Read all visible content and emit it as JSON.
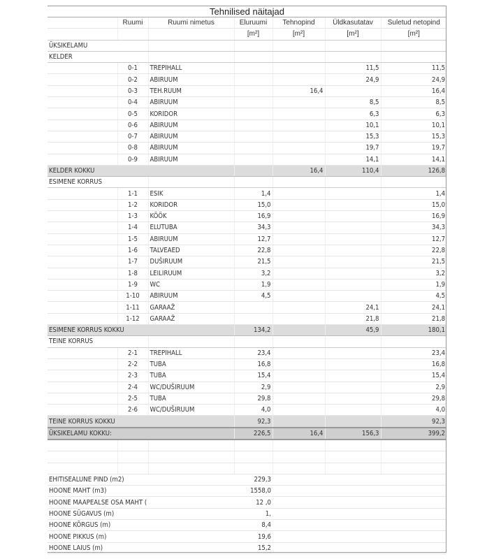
{
  "title": "Tehnilised näitajad",
  "headers": {
    "ruumi": "Ruumi",
    "nimetus": "Ruumi nimetus",
    "eluruumi": "Eluruumi",
    "tehnopind": "Tehnopind",
    "uldkasutatav": "Üldkasutatav",
    "suletud": "Suletud netopind",
    "unit": "[m²]"
  },
  "rows": [
    {
      "type": "sect",
      "label": "ÜKSIKELAMU"
    },
    {
      "type": "sect",
      "label": "KELDER"
    },
    {
      "type": "room",
      "no": "0-1",
      "name": "TREPIHALL",
      "elu": "",
      "tehno": "",
      "uld": "11,5",
      "net": "11,5"
    },
    {
      "type": "room",
      "no": "0-2",
      "name": "ABIRUUM",
      "elu": "",
      "tehno": "",
      "uld": "24,9",
      "net": "24,9"
    },
    {
      "type": "room",
      "no": "0-3",
      "name": "TEH.RUUM",
      "elu": "",
      "tehno": "16,4",
      "uld": "",
      "net": "16,4"
    },
    {
      "type": "room",
      "no": "0-4",
      "name": "ABIRUUM",
      "elu": "",
      "tehno": "",
      "uld": "8,5",
      "net": "8,5"
    },
    {
      "type": "room",
      "no": "0-5",
      "name": "KORIDOR",
      "elu": "",
      "tehno": "",
      "uld": "6,3",
      "net": "6,3"
    },
    {
      "type": "room",
      "no": "0-6",
      "name": "ABIRUUM",
      "elu": "",
      "tehno": "",
      "uld": "10,1",
      "net": "10,1"
    },
    {
      "type": "room",
      "no": "0-7",
      "name": "ABIRUUM",
      "elu": "",
      "tehno": "",
      "uld": "15,3",
      "net": "15,3"
    },
    {
      "type": "room",
      "no": "0-8",
      "name": "ABIRUUM",
      "elu": "",
      "tehno": "",
      "uld": "19,7",
      "net": "19,7"
    },
    {
      "type": "room",
      "no": "0-9",
      "name": "ABIRUUM",
      "elu": "",
      "tehno": "",
      "uld": "14,1",
      "net": "14,1"
    },
    {
      "type": "total",
      "label": "KELDER KOKKU",
      "elu": "",
      "tehno": "16,4",
      "uld": "110,4",
      "net": "126,8"
    },
    {
      "type": "sect",
      "label": "ESIMENE KORRUS"
    },
    {
      "type": "room",
      "no": "1-1",
      "name": "ESIK",
      "elu": "1,4",
      "tehno": "",
      "uld": "",
      "net": "1,4"
    },
    {
      "type": "room",
      "no": "1-2",
      "name": "KORIDOR",
      "elu": "15,0",
      "tehno": "",
      "uld": "",
      "net": "15,0"
    },
    {
      "type": "room",
      "no": "1-3",
      "name": "KÖÖK",
      "elu": "16,9",
      "tehno": "",
      "uld": "",
      "net": "16,9"
    },
    {
      "type": "room",
      "no": "1-4",
      "name": "ELUTUBA",
      "elu": "34,3",
      "tehno": "",
      "uld": "",
      "net": "34,3"
    },
    {
      "type": "room",
      "no": "1-5",
      "name": "ABIRUUM",
      "elu": "12,7",
      "tehno": "",
      "uld": "",
      "net": "12,7"
    },
    {
      "type": "room",
      "no": "1-6",
      "name": "TALVEAED",
      "elu": "22,8",
      "tehno": "",
      "uld": "",
      "net": "22,8"
    },
    {
      "type": "room",
      "no": "1-7",
      "name": "DUŠIRUUM",
      "elu": "21,5",
      "tehno": "",
      "uld": "",
      "net": "21,5"
    },
    {
      "type": "room",
      "no": "1-8",
      "name": "LEILIRUUM",
      "elu": "3,2",
      "tehno": "",
      "uld": "",
      "net": "3,2"
    },
    {
      "type": "room",
      "no": "1-9",
      "name": "WC",
      "elu": "1,9",
      "tehno": "",
      "uld": "",
      "net": "1,9"
    },
    {
      "type": "room",
      "no": "1-10",
      "name": "ABIRUUM",
      "elu": "4,5",
      "tehno": "",
      "uld": "",
      "net": "4,5"
    },
    {
      "type": "room",
      "no": "1-11",
      "name": "GARAAŽ",
      "elu": "",
      "tehno": "",
      "uld": "24,1",
      "net": "24,1"
    },
    {
      "type": "room",
      "no": "1-12",
      "name": "GARAAŽ",
      "elu": "",
      "tehno": "",
      "uld": "21,8",
      "net": "21,8"
    },
    {
      "type": "total",
      "label": "ESIMENE KORRUS KOKKU",
      "elu": "134,2",
      "tehno": "",
      "uld": "45,9",
      "net": "180,1"
    },
    {
      "type": "sect",
      "label": "TEINE KORRUS"
    },
    {
      "type": "room",
      "no": "2-1",
      "name": "TREPIHALL",
      "elu": "23,4",
      "tehno": "",
      "uld": "",
      "net": "23,4"
    },
    {
      "type": "room",
      "no": "2-2",
      "name": "TUBA",
      "elu": "16,8",
      "tehno": "",
      "uld": "",
      "net": "16,8"
    },
    {
      "type": "room",
      "no": "2-3",
      "name": "TUBA",
      "elu": "15,4",
      "tehno": "",
      "uld": "",
      "net": "15,4"
    },
    {
      "type": "room",
      "no": "2-4",
      "name": "WC/DUŠIRUUM",
      "elu": "2,9",
      "tehno": "",
      "uld": "",
      "net": "2,9"
    },
    {
      "type": "room",
      "no": "2-5",
      "name": "TUBA",
      "elu": "29,8",
      "tehno": "",
      "uld": "",
      "net": "29,8"
    },
    {
      "type": "room",
      "no": "2-6",
      "name": "WC/DUŠIRUUM",
      "elu": "4,0",
      "tehno": "",
      "uld": "",
      "net": "4,0"
    },
    {
      "type": "total",
      "label": "TEINE KORRUS KOKKU",
      "elu": "92,3",
      "tehno": "",
      "uld": "",
      "net": "92,3"
    },
    {
      "type": "grand",
      "label": "ÜKSIKELAMU KOKKU:",
      "elu": "226,5",
      "tehno": "16,4",
      "uld": "156,3",
      "net": "399,2"
    }
  ],
  "summary": [
    {
      "label": "EHITISEALUNE PIND (m2)",
      "value": "229,3"
    },
    {
      "label": "HOONE MAHT (m3)",
      "value": "1558,0"
    },
    {
      "label": "HOONE MAAPEALSE OSA MAHT (",
      "value": "12  ,0"
    },
    {
      "label": "HOONE SÜGAVUS (m)",
      "value": "1,"
    },
    {
      "label": "HOONE KÕRGUS (m)",
      "value": "8,4"
    },
    {
      "label": "HOONE PIKKUS (m)",
      "value": "19,6"
    },
    {
      "label": "HOONE LAIUS (m)",
      "value": "15,2"
    }
  ]
}
